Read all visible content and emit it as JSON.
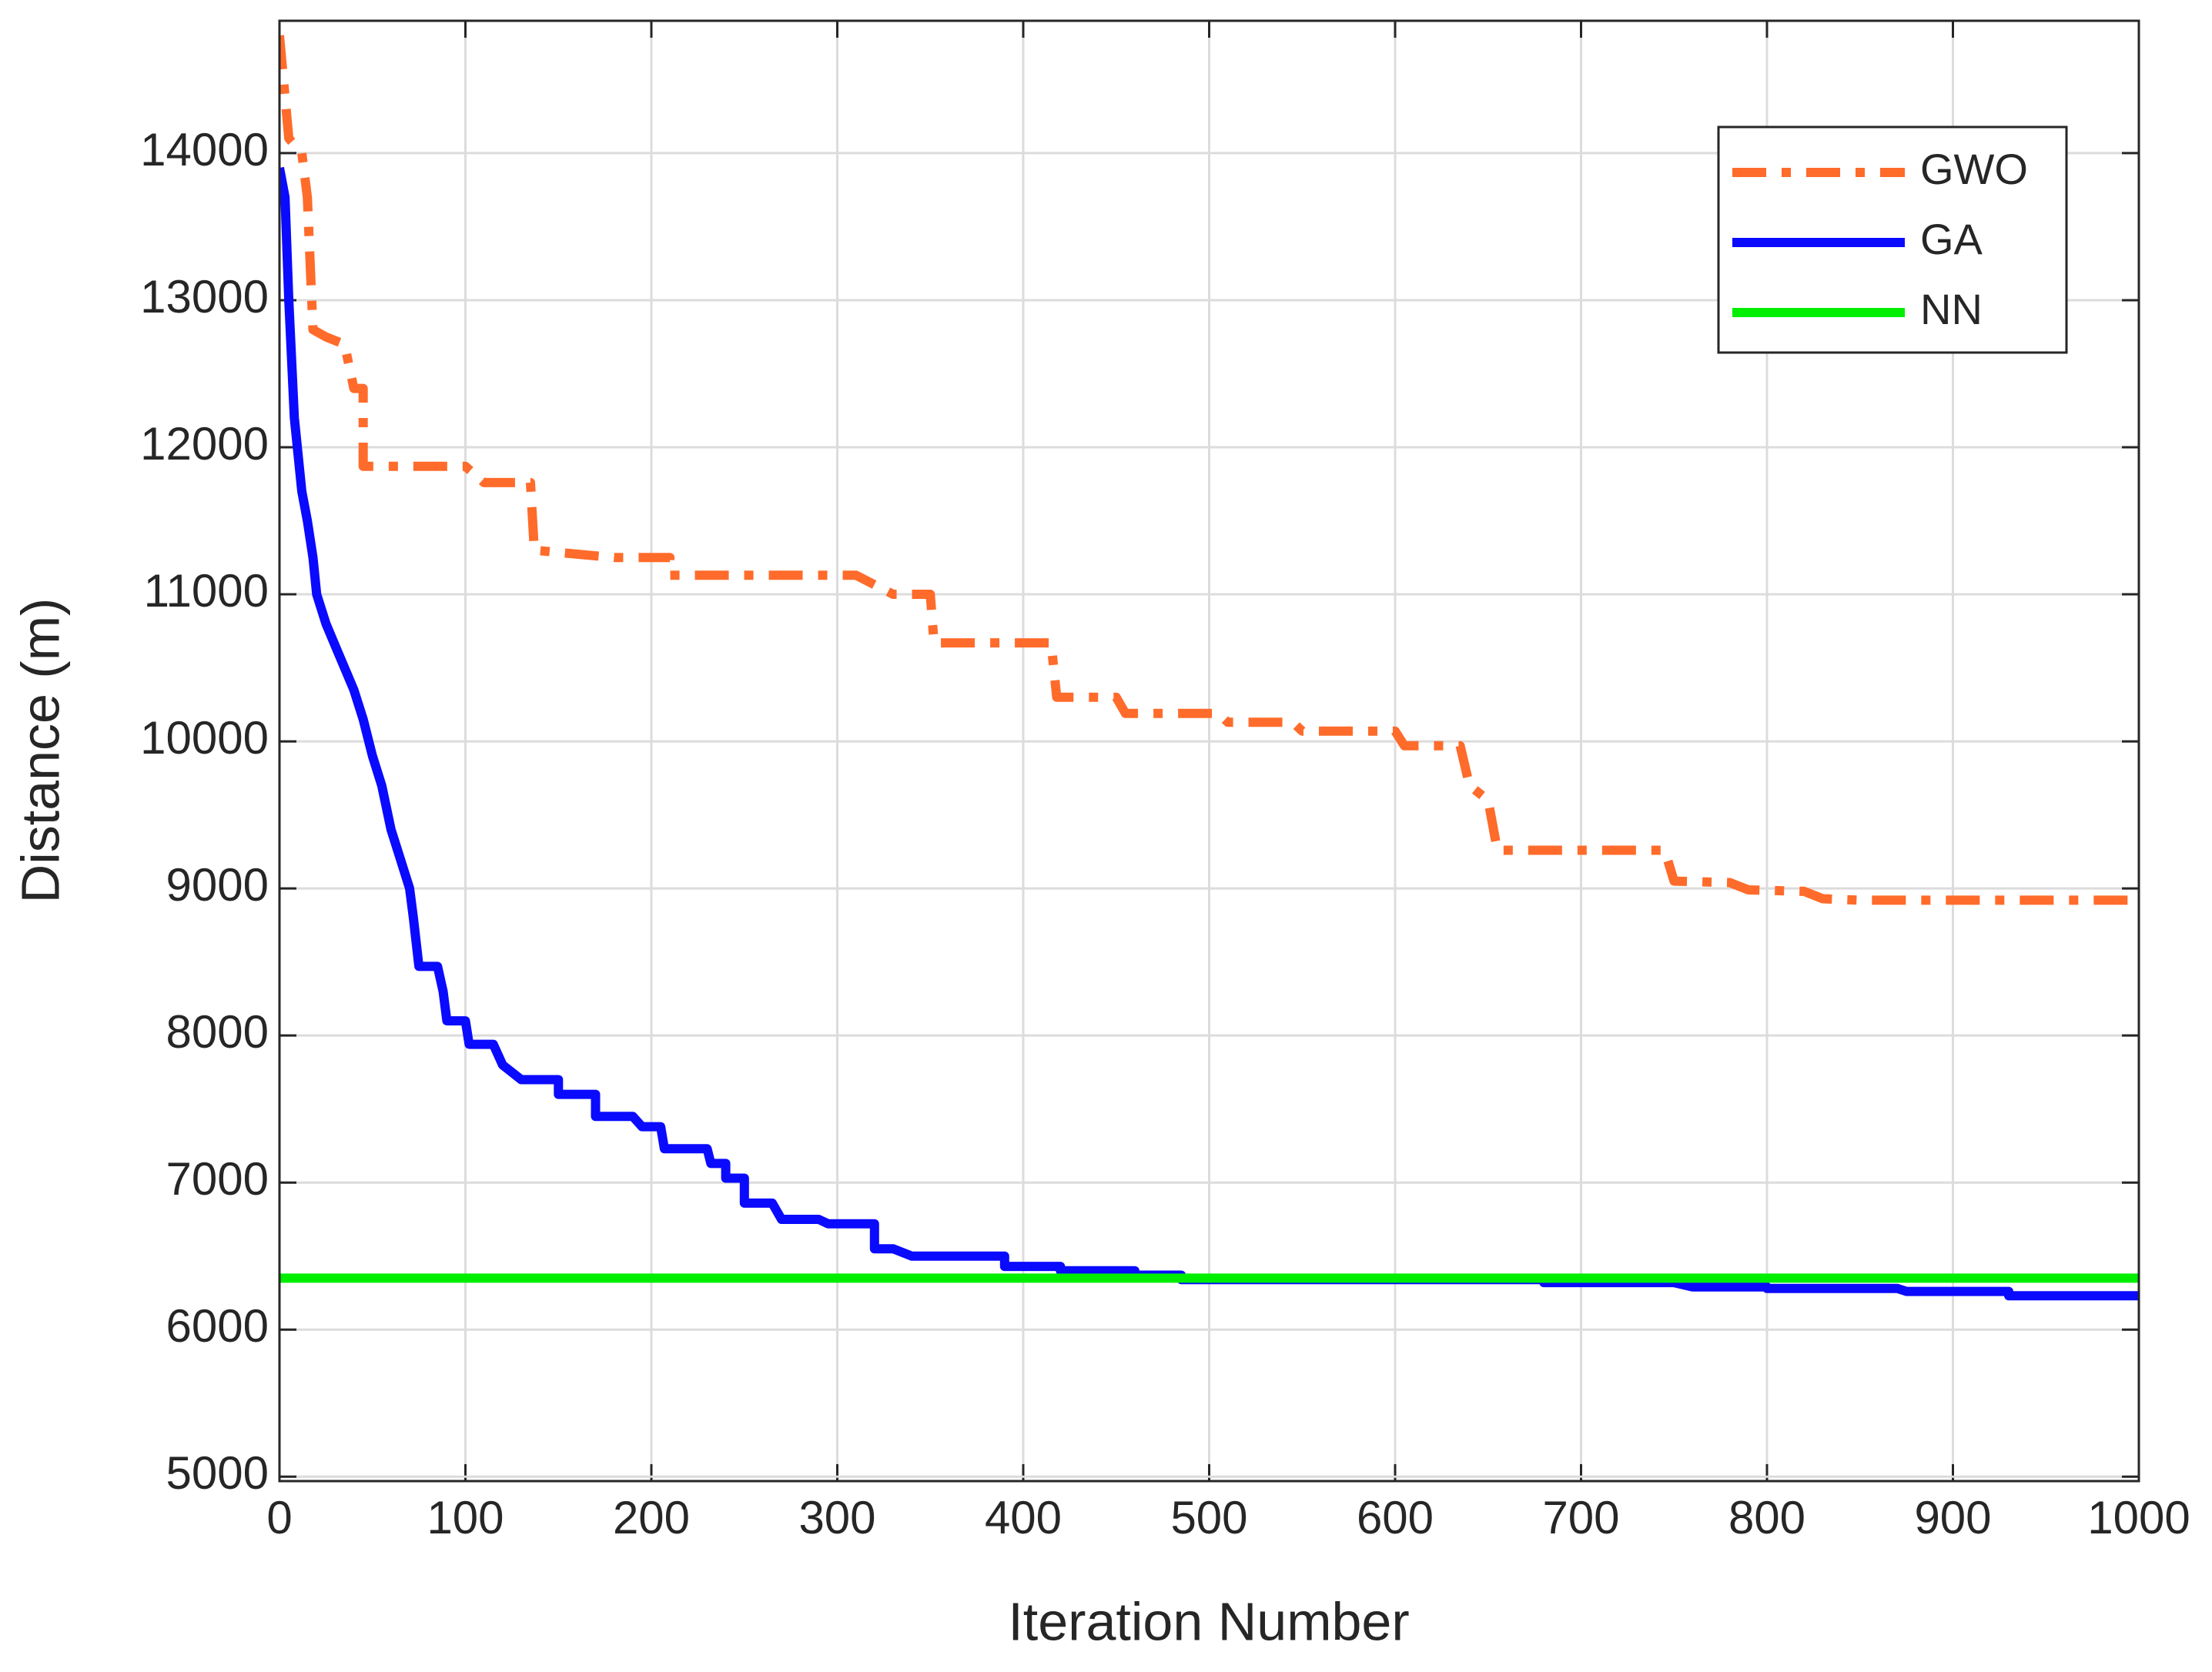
{
  "chart_data": {
    "type": "line",
    "xlabel": "Iteration Number",
    "ylabel": "Distance (m)",
    "xlim": [
      0,
      1000
    ],
    "ylim": [
      4970,
      14900
    ],
    "xticks": [
      0,
      100,
      200,
      300,
      400,
      500,
      600,
      700,
      800,
      900,
      1000
    ],
    "yticks": [
      5000,
      6000,
      7000,
      8000,
      9000,
      10000,
      11000,
      12000,
      13000,
      14000
    ],
    "grid": true,
    "legend": "upper right",
    "series": [
      {
        "name": "GWO",
        "color": "#ff6b2b",
        "dash": "dashdot",
        "x": [
          0,
          5,
          12,
          15,
          18,
          25,
          35,
          40,
          45,
          45,
          100,
          110,
          135,
          137,
          180,
          210,
          210,
          310,
          330,
          350,
          352,
          415,
          418,
          450,
          455,
          505,
          510,
          545,
          550,
          600,
          605,
          635,
          640,
          650,
          655,
          745,
          750,
          780,
          790,
          820,
          830,
          850,
          1000
        ],
        "values": [
          14800,
          14100,
          14000,
          13700,
          12800,
          12750,
          12700,
          12400,
          12400,
          11870,
          11870,
          11760,
          11760,
          11300,
          11250,
          11250,
          11130,
          11130,
          11000,
          11000,
          10670,
          10670,
          10300,
          10300,
          10190,
          10190,
          10130,
          10130,
          10070,
          10070,
          9970,
          9970,
          9700,
          9600,
          9260,
          9260,
          9050,
          9040,
          8990,
          8980,
          8930,
          8920,
          8920
        ]
      },
      {
        "name": "GA",
        "color": "#0a0aff",
        "dash": "solid",
        "x": [
          0,
          3,
          5,
          8,
          12,
          15,
          18,
          20,
          25,
          30,
          35,
          40,
          45,
          50,
          55,
          60,
          65,
          70,
          72,
          75,
          85,
          88,
          90,
          100,
          102,
          115,
          120,
          130,
          150,
          150,
          170,
          170,
          190,
          195,
          205,
          207,
          230,
          232,
          240,
          240,
          250,
          250,
          265,
          270,
          290,
          295,
          320,
          320,
          330,
          340,
          390,
          390,
          420,
          420,
          460,
          460,
          485,
          485,
          680,
          680,
          750,
          760,
          800,
          800,
          870,
          875,
          930,
          930,
          1000
        ],
        "values": [
          13900,
          13700,
          13000,
          12200,
          11700,
          11500,
          11250,
          11000,
          10800,
          10650,
          10500,
          10350,
          10150,
          9900,
          9700,
          9400,
          9200,
          9000,
          8800,
          8470,
          8470,
          8300,
          8100,
          8100,
          7940,
          7940,
          7800,
          7700,
          7700,
          7600,
          7600,
          7450,
          7450,
          7380,
          7380,
          7230,
          7230,
          7130,
          7130,
          7030,
          7030,
          6860,
          6860,
          6750,
          6750,
          6720,
          6720,
          6550,
          6550,
          6500,
          6500,
          6430,
          6430,
          6400,
          6400,
          6370,
          6370,
          6340,
          6340,
          6320,
          6320,
          6290,
          6290,
          6280,
          6280,
          6260,
          6260,
          6230,
          6230
        ]
      },
      {
        "name": "NN",
        "color": "#00ee00",
        "dash": "solid",
        "x": [
          0,
          1000
        ],
        "values": [
          6350,
          6350
        ]
      }
    ]
  }
}
